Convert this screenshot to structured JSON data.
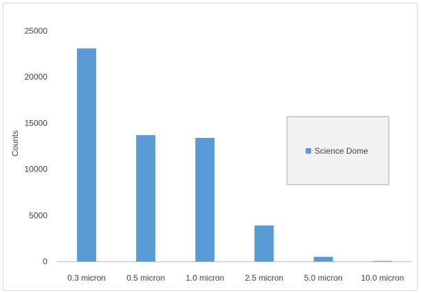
{
  "chart_data": {
    "type": "bar",
    "categories": [
      "0.3 micron",
      "0.5 micron",
      "1.0 micron",
      "2.5 micron",
      "5.0 micron",
      "10.0 micron"
    ],
    "series": [
      {
        "name": "Science Dome",
        "values": [
          23100,
          13700,
          13400,
          3900,
          500,
          50
        ]
      }
    ],
    "title": "",
    "xlabel": "",
    "ylabel": "Counts",
    "ylim": [
      0,
      25000
    ],
    "yticks": [
      "0",
      "5000",
      "10000",
      "15000",
      "20000",
      "25000"
    ],
    "grid": false,
    "legend_position": "right",
    "colors": {
      "bar": "#5b9bd5",
      "axis": "#bfbfbf",
      "legend_bg": "#f2f2f2",
      "legend_border": "#a6a6a6",
      "text": "#404040"
    }
  }
}
